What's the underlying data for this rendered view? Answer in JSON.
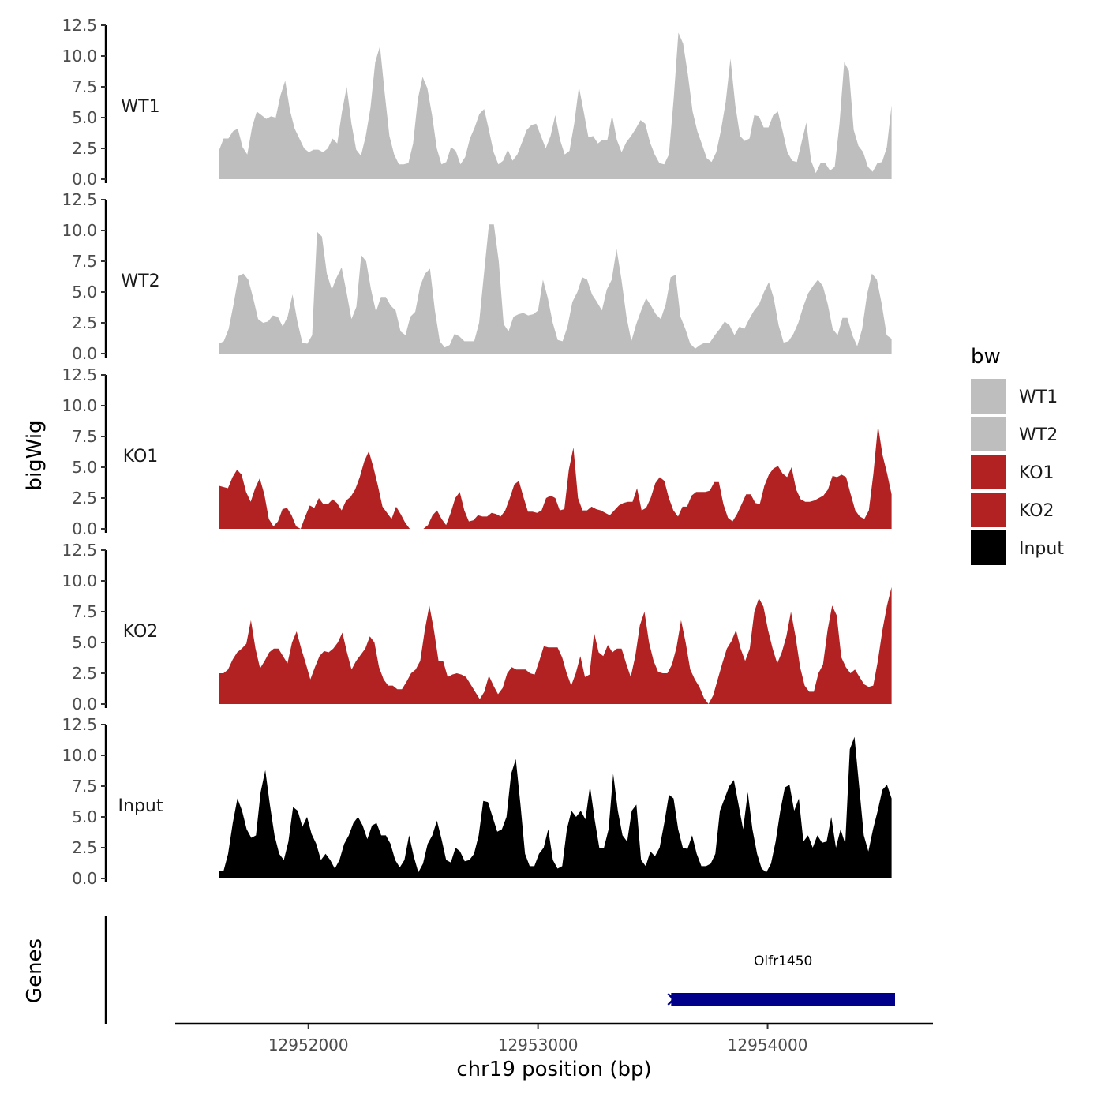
{
  "chart_data": {
    "type": "area",
    "chromosome_axis_label": "chr19 position (bp)",
    "y_panel_label": "bigWig",
    "genes_panel_label": "Genes",
    "legend": {
      "title": "bw",
      "placement": "right"
    },
    "ylim": [
      0,
      12.5
    ],
    "y_ticks": [
      "0.0",
      "2.5",
      "5.0",
      "7.5",
      "10.0",
      "12.5"
    ],
    "y_tick_values": [
      0,
      2.5,
      5.0,
      7.5,
      10.0,
      12.5
    ],
    "xlim": [
      12951420,
      12954720
    ],
    "x_ticks": [
      "12952000",
      "12953000",
      "12954000"
    ],
    "x_tick_values": [
      12952000,
      12953000,
      12954000
    ],
    "colors": {
      "WT": "#bebebe",
      "KO": "#b22222",
      "Input": "#000000",
      "gene": "#00008b"
    },
    "tracks": [
      {
        "name": "WT1",
        "color": "#bebebe",
        "x_start": 12951610,
        "x_end": 12954540,
        "values": [
          2.3,
          3.3,
          3.3,
          3.9,
          4.1,
          2.6,
          2.0,
          4.2,
          5.5,
          5.2,
          4.9,
          5.1,
          5.0,
          6.8,
          8.0,
          5.6,
          4.1,
          3.3,
          2.5,
          2.2,
          2.4,
          2.4,
          2.2,
          2.5,
          3.3,
          2.9,
          5.5,
          7.5,
          4.5,
          2.4,
          1.9,
          3.5,
          5.8,
          9.5,
          10.8,
          7.0,
          3.5,
          2.0,
          1.2,
          1.2,
          1.3,
          2.9,
          6.5,
          8.3,
          7.4,
          5.2,
          2.5,
          1.2,
          1.4,
          2.6,
          2.3,
          1.2,
          1.8,
          3.3,
          4.2,
          5.3,
          5.7,
          4.0,
          2.2,
          1.2,
          1.5,
          2.4,
          1.5,
          2.0,
          3.0,
          4.0,
          4.4,
          4.5,
          3.5,
          2.5,
          3.5,
          5.2,
          3.2,
          2.0,
          2.3,
          4.5,
          7.5,
          5.5,
          3.4,
          3.5,
          2.9,
          3.2,
          3.2,
          5.2,
          3.2,
          2.2,
          3.0,
          3.5,
          4.1,
          4.8,
          4.5,
          3.0,
          2.0,
          1.3,
          1.2,
          2.0,
          6.5,
          11.9,
          11.0,
          8.5,
          5.5,
          3.9,
          2.8,
          1.7,
          1.4,
          2.2,
          4.0,
          6.3,
          9.8,
          6.0,
          3.5,
          3.1,
          3.3,
          5.2,
          5.1,
          4.2,
          4.2,
          5.2,
          5.5,
          3.9,
          2.2,
          1.5,
          1.4,
          3.0,
          4.6,
          1.5,
          0.5,
          1.3,
          1.3,
          0.7,
          1.0,
          4.5,
          9.5,
          8.8,
          4.0,
          2.7,
          2.2,
          1.0,
          0.6,
          1.3,
          1.4,
          2.6,
          6.0
        ]
      },
      {
        "name": "WT2",
        "color": "#bebebe",
        "x_start": 12951610,
        "x_end": 12954540,
        "values": [
          0.8,
          1.0,
          2.0,
          4.0,
          6.3,
          6.5,
          6.0,
          4.5,
          2.8,
          2.5,
          2.6,
          3.1,
          3.0,
          2.2,
          3.0,
          4.8,
          2.6,
          0.9,
          0.8,
          1.5,
          9.9,
          9.5,
          6.5,
          5.2,
          6.2,
          7.0,
          5.0,
          2.8,
          3.8,
          8.0,
          7.5,
          5.2,
          3.4,
          4.6,
          4.6,
          3.9,
          3.5,
          1.8,
          1.5,
          3.0,
          3.4,
          5.5,
          6.5,
          6.9,
          3.5,
          1.0,
          0.5,
          0.7,
          1.6,
          1.4,
          1.0,
          1.0,
          1.0,
          2.5,
          6.5,
          10.5,
          10.5,
          7.5,
          2.4,
          1.8,
          3.0,
          3.2,
          3.3,
          3.1,
          3.2,
          3.5,
          6.0,
          4.5,
          2.5,
          1.1,
          1.0,
          2.2,
          4.2,
          5.0,
          6.2,
          6.0,
          4.8,
          4.2,
          3.5,
          5.2,
          6.0,
          8.5,
          6.0,
          3.0,
          1.0,
          2.4,
          3.5,
          4.5,
          3.9,
          3.2,
          2.8,
          4.0,
          6.2,
          6.4,
          3.0,
          2.0,
          0.8,
          0.4,
          0.7,
          0.9,
          0.9,
          1.5,
          2.0,
          2.6,
          2.3,
          1.5,
          2.2,
          2.0,
          2.8,
          3.5,
          4.0,
          5.0,
          5.8,
          4.5,
          2.3,
          0.9,
          1.0,
          1.6,
          2.5,
          3.8,
          4.9,
          5.5,
          6.0,
          5.5,
          4.0,
          2.0,
          1.5,
          2.9,
          2.9,
          1.5,
          0.6,
          2.0,
          4.8,
          6.5,
          6.0,
          4.0,
          1.5,
          1.2
        ]
      },
      {
        "name": "KO1",
        "color": "#b22222",
        "x_start": 12951610,
        "x_end": 12954540,
        "values": [
          3.5,
          3.4,
          3.3,
          4.2,
          4.8,
          4.4,
          3.0,
          2.2,
          3.3,
          4.1,
          2.8,
          0.8,
          0.2,
          0.6,
          1.6,
          1.7,
          1.1,
          0.2,
          0.0,
          1.0,
          1.9,
          1.7,
          2.5,
          2.0,
          2.0,
          2.4,
          2.1,
          1.5,
          2.3,
          2.6,
          3.2,
          4.2,
          5.5,
          6.3,
          5.0,
          3.5,
          1.8,
          1.3,
          0.8,
          1.8,
          1.2,
          0.5,
          0.0,
          null,
          null,
          0.0,
          0.3,
          1.1,
          1.5,
          0.8,
          0.3,
          1.3,
          2.5,
          3.0,
          1.5,
          0.6,
          0.7,
          1.1,
          1.0,
          1.0,
          1.3,
          1.2,
          1.0,
          1.5,
          2.5,
          3.6,
          3.9,
          2.6,
          1.4,
          1.4,
          1.3,
          1.5,
          2.5,
          2.7,
          2.5,
          1.5,
          1.6,
          4.8,
          6.6,
          2.5,
          1.5,
          1.5,
          1.8,
          1.6,
          1.5,
          1.3,
          1.1,
          1.5,
          1.9,
          2.1,
          2.2,
          2.2,
          3.3,
          1.5,
          1.7,
          2.5,
          3.7,
          4.2,
          3.9,
          2.5,
          1.5,
          1.0,
          1.8,
          1.8,
          2.7,
          3.0,
          3.0,
          3.0,
          3.1,
          3.8,
          3.8,
          2.0,
          0.9,
          0.6,
          1.2,
          2.0,
          2.8,
          2.8,
          2.1,
          2.0,
          3.5,
          4.4,
          4.9,
          5.1,
          4.5,
          4.2,
          5.0,
          3.2,
          2.4,
          2.2,
          2.2,
          2.3,
          2.5,
          2.7,
          3.2,
          4.3,
          4.2,
          4.4,
          4.2,
          2.8,
          1.5,
          1.0,
          0.8,
          1.5,
          4.5,
          8.4,
          6.0,
          4.5,
          2.8
        ]
      },
      {
        "name": "KO2",
        "color": "#b22222",
        "x_start": 12951610,
        "x_end": 12954540,
        "values": [
          2.5,
          2.5,
          2.8,
          3.6,
          4.2,
          4.5,
          4.9,
          6.8,
          4.5,
          2.9,
          3.5,
          4.2,
          4.5,
          4.5,
          3.9,
          3.3,
          5.0,
          5.9,
          4.5,
          3.3,
          2.0,
          3.0,
          3.9,
          4.3,
          4.2,
          4.5,
          5.0,
          5.8,
          4.2,
          2.8,
          3.5,
          4.0,
          4.5,
          5.5,
          5.0,
          3.0,
          2.0,
          1.5,
          1.5,
          1.2,
          1.2,
          1.8,
          2.5,
          2.8,
          3.5,
          6.0,
          8.0,
          6.0,
          3.5,
          3.5,
          2.2,
          2.4,
          2.5,
          2.4,
          2.2,
          1.6,
          1.0,
          0.4,
          1.0,
          2.3,
          1.5,
          0.8,
          1.3,
          2.5,
          3.0,
          2.8,
          2.8,
          2.8,
          2.5,
          2.4,
          3.5,
          4.7,
          4.6,
          4.6,
          4.6,
          3.8,
          2.5,
          1.5,
          2.5,
          3.9,
          2.2,
          2.4,
          5.8,
          4.2,
          3.9,
          4.8,
          4.2,
          4.5,
          4.5,
          3.3,
          2.2,
          3.9,
          6.4,
          7.5,
          5.0,
          3.5,
          2.6,
          2.5,
          2.5,
          3.2,
          4.6,
          6.8,
          5.0,
          2.8,
          2.0,
          1.4,
          0.5,
          0.0,
          0.7,
          2.0,
          3.3,
          4.5,
          5.1,
          6.0,
          4.5,
          3.5,
          4.5,
          7.5,
          8.6,
          7.9,
          6.0,
          4.5,
          3.3,
          4.2,
          5.5,
          7.5,
          5.5,
          3.0,
          1.5,
          1.0,
          1.0,
          2.5,
          3.2,
          6.0,
          8.0,
          7.2,
          3.8,
          3.0,
          2.5,
          2.8,
          2.2,
          1.6,
          1.4,
          1.5,
          3.5,
          6.0,
          8.0,
          9.5
        ]
      },
      {
        "name": "Input",
        "color": "#000000",
        "x_start": 12951610,
        "x_end": 12954540,
        "values": [
          0.6,
          0.6,
          2.0,
          4.5,
          6.5,
          5.5,
          4.0,
          3.3,
          3.5,
          7.0,
          8.8,
          6.0,
          3.5,
          2.0,
          1.5,
          3.0,
          5.8,
          5.5,
          4.2,
          5.0,
          3.6,
          2.8,
          1.5,
          2.0,
          1.5,
          0.8,
          1.5,
          2.8,
          3.5,
          4.5,
          5.0,
          4.3,
          3.2,
          4.3,
          4.5,
          3.5,
          3.5,
          2.8,
          1.5,
          0.9,
          1.5,
          3.5,
          1.8,
          0.5,
          1.2,
          2.8,
          3.5,
          4.7,
          3.2,
          1.5,
          1.3,
          2.5,
          2.2,
          1.4,
          1.5,
          2.0,
          3.5,
          6.3,
          6.2,
          5.0,
          3.8,
          4.0,
          5.0,
          8.5,
          9.7,
          6.0,
          2.0,
          1.0,
          1.0,
          2.0,
          2.5,
          4.0,
          1.5,
          0.8,
          1.0,
          4.0,
          5.5,
          5.0,
          5.5,
          4.8,
          7.5,
          4.8,
          2.5,
          2.5,
          4.0,
          8.5,
          5.5,
          3.5,
          3.0,
          5.5,
          6.0,
          1.5,
          1.0,
          2.2,
          1.8,
          2.5,
          4.5,
          6.8,
          6.5,
          4.0,
          2.5,
          2.4,
          3.5,
          2.0,
          1.0,
          1.0,
          1.2,
          2.0,
          5.5,
          6.5,
          7.5,
          8.0,
          6.0,
          4.0,
          7.0,
          4.0,
          2.0,
          0.8,
          0.5,
          1.2,
          3.0,
          5.5,
          7.4,
          7.6,
          5.5,
          6.5,
          3.0,
          3.5,
          2.5,
          3.5,
          2.9,
          3.0,
          5.0,
          2.5,
          4.0,
          2.8,
          10.5,
          11.5,
          7.5,
          3.5,
          2.2,
          4.0,
          5.5,
          7.2,
          7.6,
          6.5
        ]
      }
    ],
    "legend_entries": [
      {
        "label": "WT1",
        "color": "#bebebe"
      },
      {
        "label": "WT2",
        "color": "#bebebe"
      },
      {
        "label": "KO1",
        "color": "#b22222"
      },
      {
        "label": "KO2",
        "color": "#b22222"
      },
      {
        "label": "Input",
        "color": "#000000"
      }
    ],
    "genes": [
      {
        "name": "Olfr1450",
        "start": 12953580,
        "end": 12954555,
        "strand": "-",
        "color": "#00008b"
      }
    ]
  }
}
